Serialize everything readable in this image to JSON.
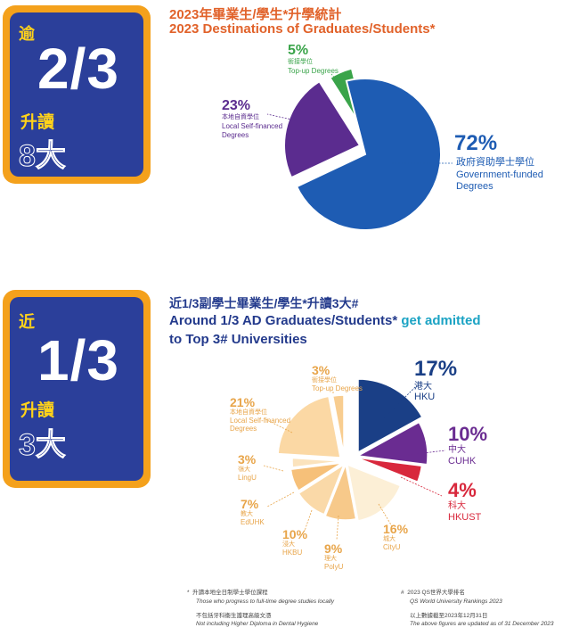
{
  "section1": {
    "badge": {
      "prefix": "逾",
      "ratio": "2/3",
      "action": "升讀",
      "count": "8大"
    },
    "title_zh": "2023年畢業生/學生*升學統計",
    "title_en": "2023 Destinations of Graduates/Students*",
    "chart_data": {
      "type": "pie",
      "slices": [
        {
          "pct": "72%",
          "value": 72,
          "zh": "政府資助學士學位",
          "en": [
            "Government-funded",
            "Degrees"
          ],
          "color": "#1e5cb3"
        },
        {
          "pct": "5%",
          "value": 5,
          "zh": "銜接學位",
          "en": [
            "Top-up Degrees"
          ],
          "color": "#3aa44a"
        },
        {
          "pct": "23%",
          "value": 23,
          "zh": "本地自資學位",
          "en": [
            "Local Self-financed",
            "Degrees"
          ],
          "color": "#5b2c8f"
        }
      ]
    }
  },
  "section2": {
    "badge": {
      "prefix": "近",
      "ratio": "1/3",
      "action": "升讀",
      "count": "3大"
    },
    "title_zh": "近1/3副學士畢業生/學生*升讀3大#",
    "title_en_1a": "Around 1/3 AD Graduates/Students*",
    "title_en_1b": " get admitted",
    "title_en_2": "to Top 3# Universities",
    "chart_data": {
      "type": "pie",
      "slices": [
        {
          "pct": "17%",
          "value": 17,
          "zh": "港大",
          "en": "HKU",
          "color": "#1a3f86"
        },
        {
          "pct": "10%",
          "value": 10,
          "zh": "中大",
          "en": "CUHK",
          "color": "#6a2c91"
        },
        {
          "pct": "4%",
          "value": 4,
          "zh": "科大",
          "en": "HKUST",
          "color": "#d8283c"
        },
        {
          "pct": "16%",
          "value": 16,
          "zh": "城大",
          "en": "CityU",
          "color": "#fcefd6"
        },
        {
          "pct": "9%",
          "value": 9,
          "zh": "理大",
          "en": "PolyU",
          "color": "#f7c98a"
        },
        {
          "pct": "10%",
          "value": 10,
          "zh": "浸大",
          "en": "HKBU",
          "color": "#fad9a8"
        },
        {
          "pct": "7%",
          "value": 7,
          "zh": "教大",
          "en": "EdUHK",
          "color": "#f6c079"
        },
        {
          "pct": "3%",
          "value": 3,
          "zh": "嶺大",
          "en": "LingU",
          "color": "#fbe3bd"
        },
        {
          "pct": "21%",
          "value": 21,
          "zh": "本地自資學位",
          "en": "Local Self-financed Degrees",
          "color": "#fbd8a4"
        },
        {
          "pct": "3%",
          "value": 3,
          "zh": "銜接學位",
          "en": "Top-up Degrees",
          "color": "#f8cd90"
        }
      ]
    }
  },
  "footnotes": {
    "star_mark": "*",
    "star_zh": "升讀本地全日制學士學位課程",
    "star_en": "Those who progress to full-time degree studies locally",
    "exclude_zh": "不包括牙科衞生護理高級文憑",
    "exclude_en": "Not including Higher Diploma in Dental Hygiene",
    "hash_mark": "#",
    "hash_zh": "2023 QS世界大學排名",
    "hash_en": "QS World University Rankings 2023",
    "date_zh": "以上數據截至2023年12月31日",
    "date_en": "The above figures are updated as of 31 December 2023"
  }
}
